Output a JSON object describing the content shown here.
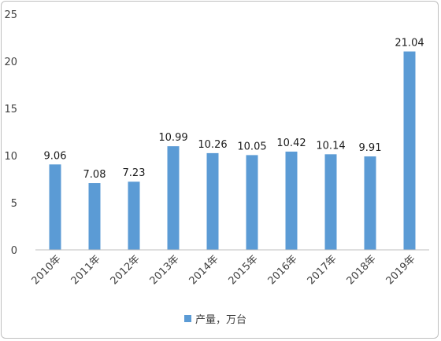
{
  "chart_data": {
    "type": "bar",
    "title": "",
    "xlabel": "",
    "ylabel": "",
    "categories": [
      "2010年",
      "2011年",
      "2012年",
      "2013年",
      "2014年",
      "2015年",
      "2016年",
      "2017年",
      "2018年",
      "2019年"
    ],
    "series": [
      {
        "name": "产量，万台",
        "values": [
          9.06,
          7.08,
          7.23,
          10.99,
          10.26,
          10.05,
          10.42,
          10.14,
          9.91,
          21.04
        ],
        "color": "#5b9bd5"
      }
    ],
    "data_labels": [
      "9.06",
      "7.08",
      "7.23",
      "10.99",
      "10.26",
      "10.05",
      "10.42",
      "10.14",
      "9.91",
      "21.04"
    ],
    "ylim": [
      0,
      25
    ],
    "yticks": [
      "0",
      "5",
      "10",
      "15",
      "20",
      "25"
    ],
    "grid": false,
    "legend_position": "bottom",
    "axis_color": "#bfbfbf"
  }
}
